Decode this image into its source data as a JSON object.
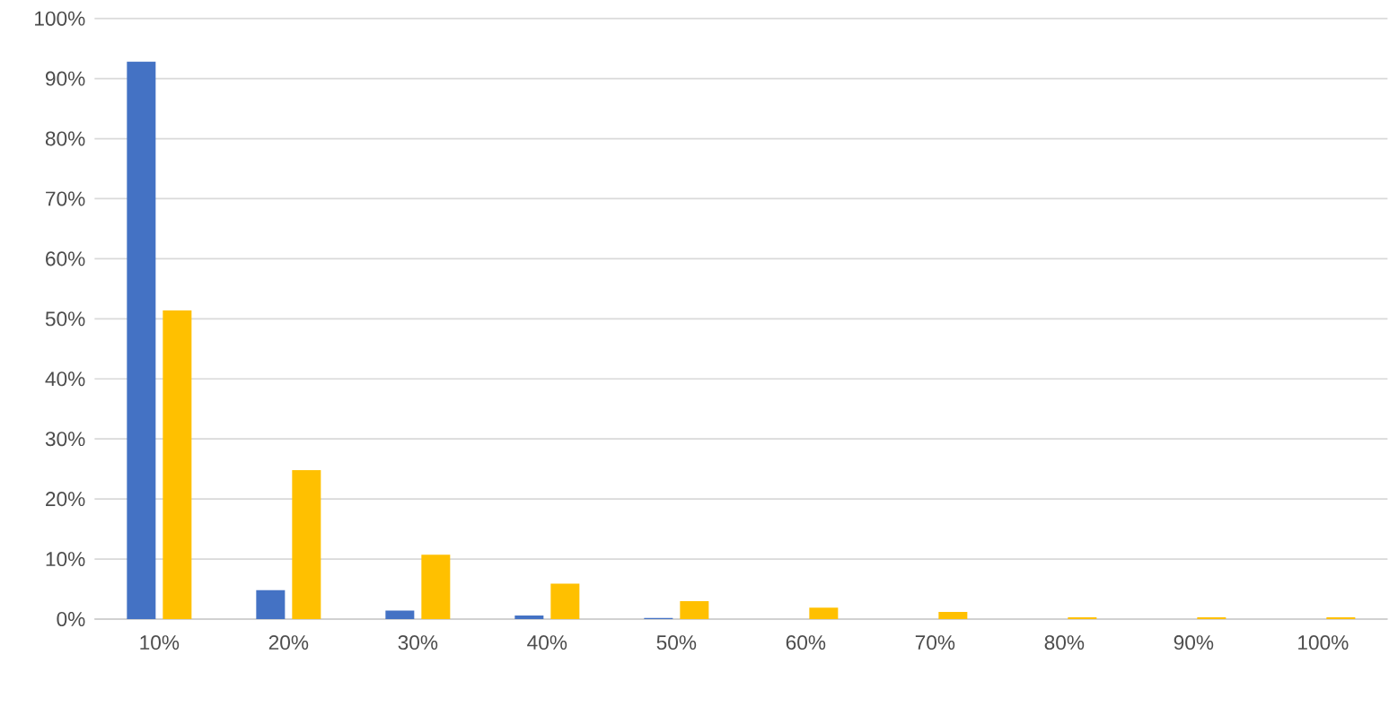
{
  "chart_data": {
    "type": "bar",
    "categories": [
      "10%",
      "20%",
      "30%",
      "40%",
      "50%",
      "60%",
      "70%",
      "80%",
      "90%",
      "100%"
    ],
    "series": [
      {
        "color": "#4472c4",
        "values": [
          92.8,
          4.8,
          1.4,
          0.6,
          0.2,
          0,
          0,
          0,
          0,
          0
        ]
      },
      {
        "color": "#ffc000",
        "values": [
          51.4,
          24.8,
          10.7,
          5.9,
          3.0,
          1.9,
          1.2,
          0.3,
          0.3,
          0.3
        ]
      }
    ],
    "ylim": [
      0,
      100
    ],
    "yticks": [
      {
        "value": 0,
        "label": "0%"
      },
      {
        "value": 10,
        "label": "10%"
      },
      {
        "value": 20,
        "label": "20%"
      },
      {
        "value": 30,
        "label": "30%"
      },
      {
        "value": 40,
        "label": "40%"
      },
      {
        "value": 50,
        "label": "50%"
      },
      {
        "value": 60,
        "label": "60%"
      },
      {
        "value": 70,
        "label": "70%"
      },
      {
        "value": 80,
        "label": "80%"
      },
      {
        "value": 90,
        "label": "90%"
      },
      {
        "value": 100,
        "label": "100%"
      }
    ],
    "grid": "y"
  }
}
